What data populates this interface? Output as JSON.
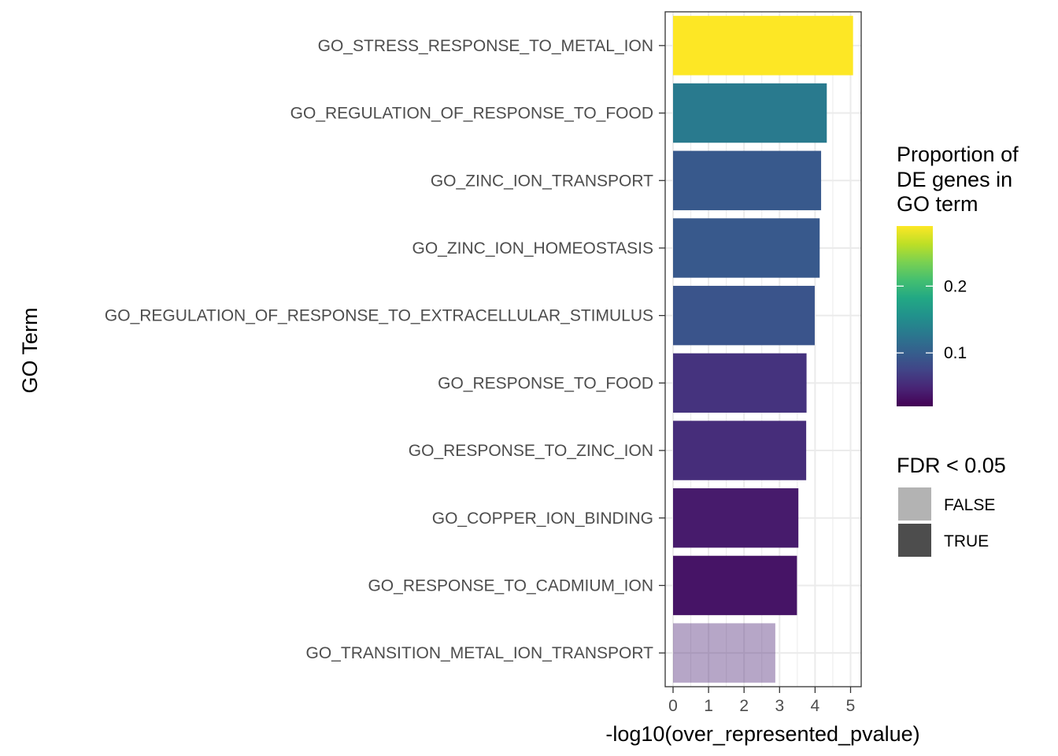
{
  "chart_data": {
    "type": "bar",
    "orientation": "horizontal",
    "categories": [
      "GO_STRESS_RESPONSE_TO_METAL_ION",
      "GO_REGULATION_OF_RESPONSE_TO_FOOD",
      "GO_ZINC_ION_TRANSPORT",
      "GO_ZINC_ION_HOMEOSTASIS",
      "GO_REGULATION_OF_RESPONSE_TO_EXTRACELLULAR_STIMULUS",
      "GO_RESPONSE_TO_FOOD",
      "GO_RESPONSE_TO_ZINC_ION",
      "GO_COPPER_ION_BINDING",
      "GO_RESPONSE_TO_CADMIUM_ION",
      "GO_TRANSITION_METAL_ION_TRANSPORT"
    ],
    "values": [
      5.07,
      4.33,
      4.17,
      4.13,
      3.99,
      3.76,
      3.75,
      3.53,
      3.49,
      2.88
    ],
    "fill_values": [
      0.29,
      0.13,
      0.095,
      0.095,
      0.09,
      0.06,
      0.055,
      0.04,
      0.035,
      0.045
    ],
    "fdr_significant": [
      true,
      true,
      true,
      true,
      true,
      true,
      true,
      true,
      true,
      false
    ],
    "xlabel": "-log10(over_represented_pvalue)",
    "ylabel": "GO Term",
    "xlim": [
      -0.2,
      5.3
    ],
    "x_ticks": [
      "0",
      "1",
      "2",
      "3",
      "4",
      "5"
    ],
    "grid": true,
    "legend_placement": "right",
    "color_legend": {
      "title_lines": [
        "Proportion of",
        "DE genes in",
        "GO term"
      ],
      "range": [
        0.02,
        0.29
      ],
      "ticks": [
        {
          "value": 0.1,
          "label": "0.1"
        },
        {
          "value": 0.2,
          "label": "0.2"
        }
      ],
      "colormap": "viridis"
    },
    "alpha_legend": {
      "title": "FDR < 0.05",
      "entries": [
        {
          "label": "FALSE",
          "color": "#b3b3b3"
        },
        {
          "label": "TRUE",
          "color": "#4d4d4d"
        }
      ]
    }
  }
}
